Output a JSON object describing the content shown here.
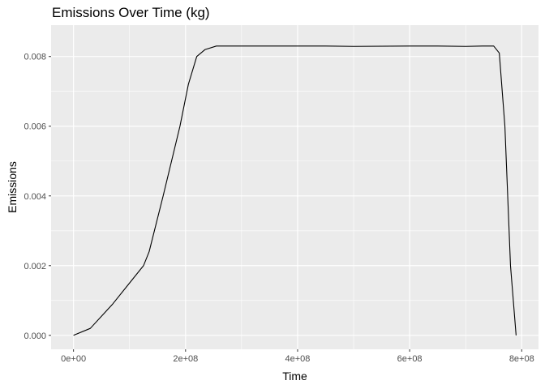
{
  "chart_data": {
    "type": "line",
    "title": "Emissions Over Time (kg)",
    "xlabel": "Time",
    "ylabel": "Emissions",
    "xlim": [
      -40000000,
      830000000
    ],
    "ylim": [
      -0.0004,
      0.0089
    ],
    "x_ticks": [
      0,
      200000000,
      400000000,
      600000000,
      800000000
    ],
    "x_tick_labels": [
      "0e+00",
      "2e+08",
      "4e+08",
      "6e+08",
      "8e+08"
    ],
    "x_minor": [
      100000000,
      300000000,
      500000000,
      700000000
    ],
    "y_ticks": [
      0,
      0.002,
      0.004,
      0.006,
      0.008
    ],
    "y_tick_labels": [
      "0.000",
      "0.002",
      "0.004",
      "0.006",
      "0.008"
    ],
    "y_minor": [
      0.001,
      0.003,
      0.005,
      0.007
    ],
    "grid": true,
    "colors": {
      "panel": "#EBEBEB",
      "grid": "#FFFFFF",
      "line": "#000000",
      "tick_text": "#4D4D4D"
    },
    "series": [
      {
        "x": [
          0,
          30000000,
          70000000,
          100000000,
          125000000,
          135000000,
          160000000,
          190000000,
          205000000,
          220000000,
          235000000,
          255000000,
          270000000,
          350000000,
          450000000,
          500000000,
          600000000,
          650000000,
          700000000,
          730000000,
          750000000,
          760000000,
          770000000,
          780000000,
          790000000
        ],
        "y": [
          0,
          0.0002,
          0.0009,
          0.0015,
          0.002,
          0.0024,
          0.004,
          0.006,
          0.0072,
          0.008,
          0.0082,
          0.0083,
          0.0083,
          0.0083,
          0.0083,
          0.00829,
          0.0083,
          0.0083,
          0.00829,
          0.0083,
          0.0083,
          0.0081,
          0.006,
          0.002,
          0
        ]
      }
    ]
  }
}
